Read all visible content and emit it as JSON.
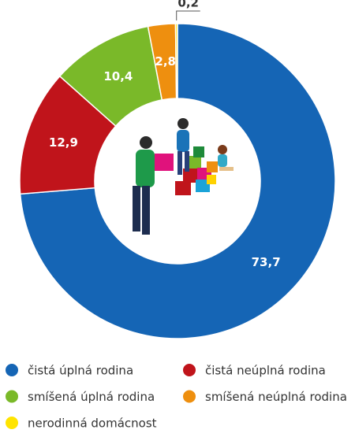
{
  "chart_data": {
    "type": "donut",
    "categories": [
      "čistá úplná rodina",
      "čistá neúplná rodina",
      "smíšená úplná rodina",
      "smíšená neúplná rodina",
      "nerodinná domácnost"
    ],
    "values": [
      73.7,
      12.9,
      10.4,
      2.8,
      0.2
    ],
    "value_labels": [
      "73,7",
      "12,9",
      "10,4",
      "2,8",
      "0,2"
    ],
    "colors": [
      "#1565b5",
      "#c0141b",
      "#7ab929",
      "#ee8f0f",
      "#ffe400"
    ],
    "legend": "bottom"
  }
}
